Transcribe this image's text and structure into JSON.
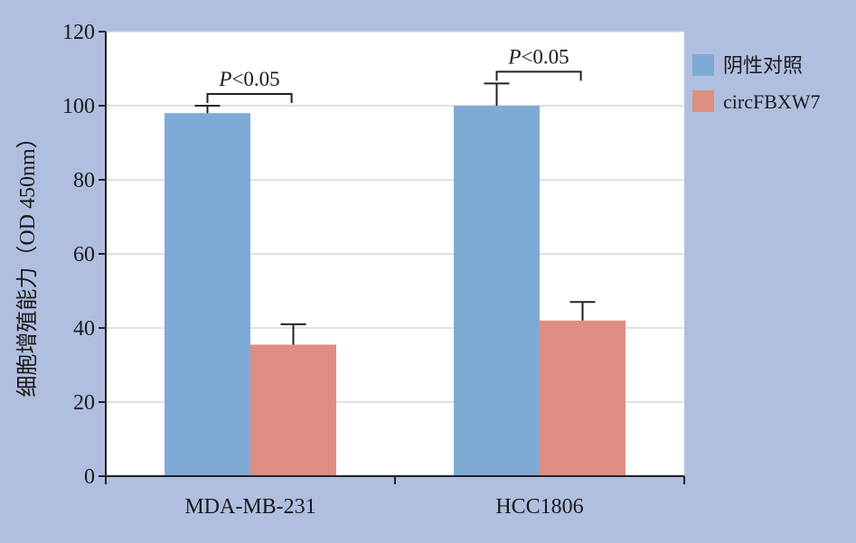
{
  "chart_data": {
    "type": "bar",
    "categories": [
      "MDA-MB-231",
      "HCC1806"
    ],
    "series": [
      {
        "name": "阴性对照",
        "values": [
          98,
          100
        ],
        "errors": [
          2,
          6
        ],
        "color": "#7faad6"
      },
      {
        "name": "circFBXW7",
        "values": [
          35.5,
          42
        ],
        "errors": [
          5.5,
          5
        ],
        "color": "#df8e83"
      }
    ],
    "ylabel": "细胞增殖能力（OD 450nm）",
    "ylim": [
      0,
      120
    ],
    "yticks": [
      0,
      20,
      40,
      60,
      80,
      100,
      120
    ],
    "grid": true,
    "legend": "right",
    "annotations": [
      {
        "text_italic": "P",
        "text": "<0.05",
        "category": "MDA-MB-231"
      },
      {
        "text_italic": "P",
        "text": "<0.05",
        "category": "HCC1806"
      }
    ]
  },
  "colors": {
    "background": "#b0bedf",
    "plot_background": "#ffffff",
    "grid": "#d5d5d5",
    "axis": "#222222"
  }
}
